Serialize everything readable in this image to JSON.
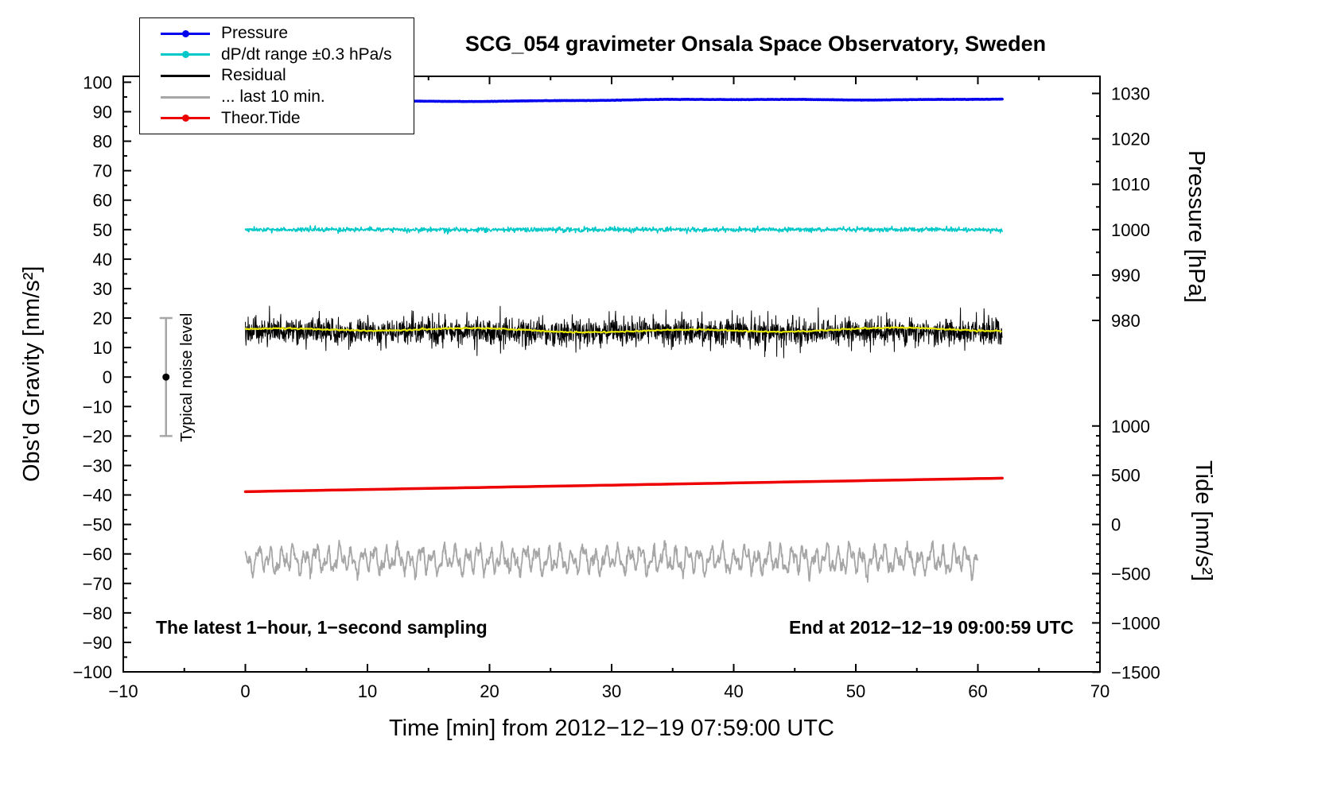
{
  "title": "SCG_054 gravimeter Onsala Space Observatory, Sweden",
  "annotations": {
    "bottom_left": "The latest 1−hour, 1−second sampling",
    "bottom_right": "End at 2012−12−19 09:00:59 UTC",
    "noise_label": "Typical noise level"
  },
  "axes": {
    "x": {
      "label": "Time [min] from 2012−12−19 07:59:00 UTC",
      "min": -10,
      "max": 70,
      "major_ticks": [
        -10,
        0,
        10,
        20,
        30,
        40,
        50,
        60,
        70
      ],
      "minor_step": 5
    },
    "y_left": {
      "label": "Obs'd Gravity [nm/s²]",
      "min": -100,
      "max": 102,
      "major_ticks": [
        100,
        90,
        80,
        70,
        60,
        50,
        40,
        30,
        20,
        10,
        0,
        -10,
        -20,
        -30,
        -40,
        -50,
        -60,
        -70,
        -80,
        -90,
        -100
      ],
      "minor_step": 5
    },
    "y_right_pressure": {
      "label": "Pressure [hPa]",
      "ticks": [
        1030,
        1020,
        1010,
        1000,
        990,
        980
      ],
      "minor_step": 5,
      "grav_at_1000hPa": 50,
      "grav_per_hPa": 1.54
    },
    "y_right_tide": {
      "label": "Tide [nm/s²]",
      "ticks": [
        1000,
        500,
        0,
        -500,
        -1000,
        -1500
      ],
      "minor_step": 100,
      "grav_at_0": -50,
      "grav_per_unit": 0.0334
    }
  },
  "legend": {
    "items": [
      {
        "label": "Pressure",
        "color": "#0000ee",
        "marker": true
      },
      {
        "label": "dP/dt range ±0.3 hPa/s",
        "color": "#00c8c8",
        "marker": true
      },
      {
        "label": "Residual",
        "color": "#000000",
        "marker": false
      },
      {
        "label": "... last 10 min.",
        "color": "#a6a6a6",
        "marker": false
      },
      {
        "label": "Theor.Tide",
        "color": "#ee0000",
        "marker": true
      }
    ]
  },
  "chart_data": {
    "type": "line",
    "title": "SCG_054 gravimeter Onsala Space Observatory, Sweden",
    "xlabel": "Time [min] from 2012−12−19 07:59:00 UTC",
    "ylabel_left": "Obs'd Gravity [nm/s²]",
    "ylabel_right_top": "Pressure [hPa]",
    "ylabel_right_bottom": "Tide [nm/s²]",
    "x_range_min": [
      -10,
      70
    ],
    "grav_range": [
      -100,
      102
    ],
    "grid": false,
    "legend_position": "top-left",
    "series": [
      {
        "name": "Pressure",
        "kind": "pressure_trend",
        "axis": "pressure_hPa",
        "color": "#0000ee",
        "width": 3.5,
        "x_start": 0,
        "x_end": 62,
        "start_hPa": 1028.2,
        "end_hPa": 1028.8,
        "wiggle_hPa": 0.12
      },
      {
        "name": "dP/dt range ±0.3 hPa/s",
        "kind": "flat_noise",
        "axis": "left_grav",
        "color": "#00c8c8",
        "width": 1.6,
        "x_start": 0,
        "x_end": 62,
        "center": 50,
        "sigma": 0.38,
        "outlier": 2
      },
      {
        "name": "Residual",
        "kind": "spiky_noise",
        "axis": "left_grav",
        "color": "#000000",
        "width": 1,
        "x_start": 0,
        "x_end": 62,
        "center": 15.4,
        "sigma": 2.2,
        "spike_prob": 0.05,
        "spike_amp": 6
      },
      {
        "name": "Residual low-pass",
        "kind": "smooth_wiggle",
        "axis": "left_grav",
        "color": "#e8e800",
        "width": 2.2,
        "x_start": 0,
        "x_end": 62,
        "center": 15.9,
        "a1": 0.5,
        "a2": 0.35,
        "sigma": 0.12
      },
      {
        "name": "Theor.Tide",
        "kind": "tide_trend",
        "axis": "tide",
        "color": "#ee0000",
        "width": 3.5,
        "x_start": 0,
        "x_end": 62,
        "start_tide": 333,
        "end_tide": 470
      },
      {
        "name": "... last 10 min.",
        "kind": "oscillation",
        "axis": "left_grav",
        "color": "#a6a6a6",
        "width": 1.8,
        "x_start": 0,
        "x_end": 60,
        "center": -62,
        "components": [
          [
            3.0,
            0.95
          ],
          [
            1.9,
            0.43
          ],
          [
            1.1,
            2.2
          ]
        ],
        "phases": [
          0.7,
          2.1,
          4.0
        ],
        "sigma": 0.8
      }
    ],
    "noise_marker": {
      "x": -6.5,
      "center": 0,
      "half_range": 20,
      "color": "#a6a6a6",
      "dot_color": "#000000"
    }
  }
}
